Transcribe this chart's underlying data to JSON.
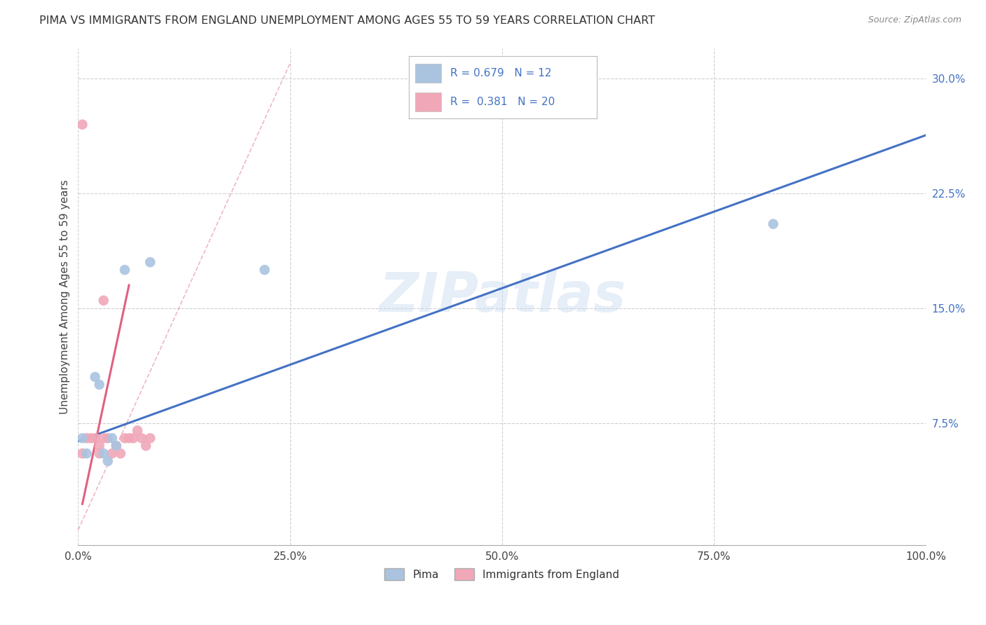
{
  "title": "PIMA VS IMMIGRANTS FROM ENGLAND UNEMPLOYMENT AMONG AGES 55 TO 59 YEARS CORRELATION CHART",
  "source": "Source: ZipAtlas.com",
  "ylabel": "Unemployment Among Ages 55 to 59 years",
  "xmin": 0.0,
  "xmax": 1.0,
  "ymin": -0.005,
  "ymax": 0.32,
  "xticks": [
    0.0,
    0.25,
    0.5,
    0.75,
    1.0
  ],
  "xtick_labels": [
    "0.0%",
    "25.0%",
    "50.0%",
    "75.0%",
    "100.0%"
  ],
  "yticks": [
    0.0,
    0.075,
    0.15,
    0.225,
    0.3
  ],
  "ytick_labels": [
    "",
    "7.5%",
    "15.0%",
    "22.5%",
    "30.0%"
  ],
  "series1_name": "Pima",
  "series1_color": "#aac4e0",
  "series1_R": "0.679",
  "series1_N": "12",
  "series1_x": [
    0.005,
    0.01,
    0.02,
    0.025,
    0.03,
    0.035,
    0.04,
    0.045,
    0.055,
    0.085,
    0.22,
    0.82
  ],
  "series1_y": [
    0.065,
    0.055,
    0.105,
    0.1,
    0.055,
    0.05,
    0.065,
    0.06,
    0.175,
    0.18,
    0.175,
    0.205
  ],
  "series2_name": "Immigrants from England",
  "series2_color": "#f0a8b8",
  "series2_R": "0.381",
  "series2_N": "20",
  "series2_x": [
    0.005,
    0.01,
    0.015,
    0.02,
    0.025,
    0.025,
    0.03,
    0.03,
    0.035,
    0.04,
    0.045,
    0.05,
    0.055,
    0.06,
    0.065,
    0.07,
    0.075,
    0.08,
    0.085,
    0.005
  ],
  "series2_y": [
    0.27,
    0.065,
    0.065,
    0.065,
    0.06,
    0.055,
    0.155,
    0.065,
    0.065,
    0.055,
    0.06,
    0.055,
    0.065,
    0.065,
    0.065,
    0.07,
    0.065,
    0.06,
    0.065,
    0.055
  ],
  "line1_x0": 0.0,
  "line1_y0": 0.063,
  "line1_x1": 1.0,
  "line1_y1": 0.263,
  "line2_solid_x0": 0.005,
  "line2_solid_y0": 0.022,
  "line2_solid_x1": 0.06,
  "line2_solid_y1": 0.165,
  "line2_dash_x0": 0.0,
  "line2_dash_y0": 0.005,
  "line2_dash_x1": 0.25,
  "line2_dash_y1": 0.31,
  "watermark": "ZIPatlas",
  "grid_color": "#d0d0d0",
  "background_color": "#ffffff",
  "legend_box_color_1": "#aac4e0",
  "legend_box_color_2": "#f0a8b8",
  "legend_text_color": "#4472c4",
  "marker_size": 110,
  "line1_color": "#4472c4",
  "line2_color": "#e06080"
}
